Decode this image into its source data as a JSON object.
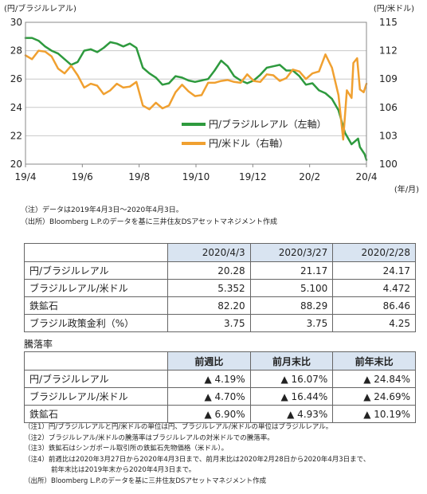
{
  "chart_data": {
    "type": "line",
    "left_axis_unit": "(円/ブラジルレアル)",
    "right_axis_unit": "(円/米ドル)",
    "x_unit": "(年/月)",
    "x_tick_labels": [
      "19/4",
      "19/6",
      "19/8",
      "19/10",
      "19/12",
      "20/2",
      "20/4"
    ],
    "x_range": [
      "2019-04-03",
      "2020-04-03"
    ],
    "y_left": {
      "min": 20,
      "max": 30,
      "ticks": [
        "20",
        "22",
        "24",
        "26",
        "28",
        "30"
      ]
    },
    "y_right": {
      "min": 100,
      "max": 115,
      "ticks": [
        "100",
        "103",
        "106",
        "109",
        "112",
        "115"
      ]
    },
    "legend_position": "center-right",
    "grid": "horizontal",
    "series": [
      {
        "name": "円/ブラジルレアル（左軸）",
        "axis": "left",
        "color": "#2e9a3e",
        "points": [
          [
            "2019-04-03",
            28.9
          ],
          [
            "2019-04-10",
            28.9
          ],
          [
            "2019-04-17",
            28.7
          ],
          [
            "2019-04-24",
            28.3
          ],
          [
            "2019-05-01",
            28.0
          ],
          [
            "2019-05-08",
            27.8
          ],
          [
            "2019-05-15",
            27.4
          ],
          [
            "2019-05-22",
            27.0
          ],
          [
            "2019-05-29",
            27.2
          ],
          [
            "2019-06-05",
            28.0
          ],
          [
            "2019-06-12",
            28.1
          ],
          [
            "2019-06-19",
            27.9
          ],
          [
            "2019-06-26",
            28.2
          ],
          [
            "2019-07-03",
            28.6
          ],
          [
            "2019-07-10",
            28.5
          ],
          [
            "2019-07-17",
            28.3
          ],
          [
            "2019-07-24",
            28.5
          ],
          [
            "2019-07-31",
            28.2
          ],
          [
            "2019-08-07",
            26.8
          ],
          [
            "2019-08-14",
            26.4
          ],
          [
            "2019-08-21",
            26.1
          ],
          [
            "2019-08-28",
            25.6
          ],
          [
            "2019-09-04",
            25.7
          ],
          [
            "2019-09-11",
            26.2
          ],
          [
            "2019-09-18",
            26.1
          ],
          [
            "2019-09-25",
            25.9
          ],
          [
            "2019-10-02",
            25.8
          ],
          [
            "2019-10-09",
            25.9
          ],
          [
            "2019-10-16",
            26.0
          ],
          [
            "2019-10-23",
            26.6
          ],
          [
            "2019-10-30",
            27.3
          ],
          [
            "2019-11-06",
            26.9
          ],
          [
            "2019-11-13",
            26.2
          ],
          [
            "2019-11-20",
            25.9
          ],
          [
            "2019-11-27",
            25.7
          ],
          [
            "2019-12-04",
            25.9
          ],
          [
            "2019-12-11",
            26.3
          ],
          [
            "2019-12-18",
            26.8
          ],
          [
            "2019-12-25",
            26.9
          ],
          [
            "2020-01-01",
            27.0
          ],
          [
            "2020-01-08",
            26.6
          ],
          [
            "2020-01-15",
            26.6
          ],
          [
            "2020-01-22",
            26.2
          ],
          [
            "2020-01-29",
            25.6
          ],
          [
            "2020-02-05",
            25.7
          ],
          [
            "2020-02-12",
            25.2
          ],
          [
            "2020-02-19",
            25.0
          ],
          [
            "2020-02-26",
            24.6
          ],
          [
            "2020-03-04",
            23.8
          ],
          [
            "2020-03-11",
            22.2
          ],
          [
            "2020-03-18",
            21.4
          ],
          [
            "2020-03-25",
            21.8
          ],
          [
            "2020-03-27",
            21.2
          ],
          [
            "2020-04-01",
            20.7
          ],
          [
            "2020-04-03",
            20.3
          ]
        ]
      },
      {
        "name": "円/米ドル（右軸）",
        "axis": "right",
        "color": "#f0a030",
        "points": [
          [
            "2019-04-03",
            111.5
          ],
          [
            "2019-04-10",
            111.1
          ],
          [
            "2019-04-17",
            112.0
          ],
          [
            "2019-04-24",
            111.9
          ],
          [
            "2019-05-01",
            111.4
          ],
          [
            "2019-05-08",
            110.1
          ],
          [
            "2019-05-15",
            109.6
          ],
          [
            "2019-05-22",
            110.4
          ],
          [
            "2019-05-29",
            109.4
          ],
          [
            "2019-06-05",
            108.1
          ],
          [
            "2019-06-12",
            108.5
          ],
          [
            "2019-06-19",
            108.3
          ],
          [
            "2019-06-26",
            107.4
          ],
          [
            "2019-07-03",
            107.8
          ],
          [
            "2019-07-10",
            108.5
          ],
          [
            "2019-07-17",
            108.1
          ],
          [
            "2019-07-24",
            108.2
          ],
          [
            "2019-07-31",
            108.7
          ],
          [
            "2019-08-07",
            106.2
          ],
          [
            "2019-08-14",
            105.8
          ],
          [
            "2019-08-21",
            106.5
          ],
          [
            "2019-08-28",
            105.9
          ],
          [
            "2019-09-04",
            106.2
          ],
          [
            "2019-09-11",
            107.6
          ],
          [
            "2019-09-18",
            108.4
          ],
          [
            "2019-09-25",
            107.7
          ],
          [
            "2019-10-02",
            107.2
          ],
          [
            "2019-10-09",
            107.3
          ],
          [
            "2019-10-16",
            108.6
          ],
          [
            "2019-10-23",
            108.6
          ],
          [
            "2019-10-30",
            108.8
          ],
          [
            "2019-11-06",
            108.9
          ],
          [
            "2019-11-13",
            108.7
          ],
          [
            "2019-11-20",
            108.6
          ],
          [
            "2019-11-27",
            109.5
          ],
          [
            "2019-12-04",
            108.8
          ],
          [
            "2019-12-11",
            108.7
          ],
          [
            "2019-12-18",
            109.5
          ],
          [
            "2019-12-25",
            109.4
          ],
          [
            "2020-01-01",
            108.8
          ],
          [
            "2020-01-08",
            109.1
          ],
          [
            "2020-01-15",
            110.0
          ],
          [
            "2020-01-22",
            109.8
          ],
          [
            "2020-01-29",
            109.0
          ],
          [
            "2020-02-05",
            109.6
          ],
          [
            "2020-02-12",
            109.8
          ],
          [
            "2020-02-19",
            111.6
          ],
          [
            "2020-02-26",
            110.2
          ],
          [
            "2020-03-04",
            107.3
          ],
          [
            "2020-03-09",
            102.6
          ],
          [
            "2020-03-13",
            107.8
          ],
          [
            "2020-03-18",
            107.0
          ],
          [
            "2020-03-20",
            110.7
          ],
          [
            "2020-03-24",
            111.2
          ],
          [
            "2020-03-27",
            107.9
          ],
          [
            "2020-03-31",
            107.6
          ],
          [
            "2020-04-03",
            108.5
          ]
        ]
      }
    ]
  },
  "note1": [
    "（注）データは2019年4月3日～2020年4月3日。",
    "（出所）Bloomberg L.P.のデータを基に三井住友DSアセットマネジメント作成"
  ],
  "table1": {
    "headers": [
      "",
      "2020/4/3",
      "2020/3/27",
      "2020/2/28"
    ],
    "rows": [
      {
        "label": "円/ブラジルレアル",
        "values": [
          "20.28",
          "21.17",
          "24.17"
        ]
      },
      {
        "label": "ブラジルレアル/米ドル",
        "values": [
          "5.352",
          "5.100",
          "4.472"
        ]
      },
      {
        "label": "鉄鉱石",
        "values": [
          "82.20",
          "88.29",
          "86.46"
        ]
      },
      {
        "label": "ブラジル政策金利（%）",
        "values": [
          "3.75",
          "3.75",
          "4.25"
        ]
      }
    ]
  },
  "table2": {
    "title": "騰落率",
    "headers": [
      "",
      "前週比",
      "前月末比",
      "前年末比"
    ],
    "rows": [
      {
        "label": "円/ブラジルレアル",
        "values": [
          "▲ 4.19%",
          "▲ 16.07%",
          "▲ 24.84%"
        ]
      },
      {
        "label": "ブラジルレアル/米ドル",
        "values": [
          "▲ 4.70%",
          "▲ 16.44%",
          "▲ 24.69%"
        ]
      },
      {
        "label": "鉄鉱石",
        "values": [
          "▲ 6.90%",
          "▲ 4.93%",
          "▲ 10.19%"
        ]
      }
    ]
  },
  "notes2": [
    "（注1）円/ブラジルレアルと円/米ドルの単位は円、ブラジルレアル/米ドルの単位はブラジルレアル。",
    "（注2）ブラジルレアル/米ドルの騰落率はブラジルレアルの対米ドルでの騰落率。",
    "（注3）鉄鉱石はシンガポール取引所の鉄鉱石先物価格（米ドル）。",
    "（注4）前週比は2020年3月27日から2020年4月3日まで、前月末比は2020年2月28日から2020年4月3日まで、",
    "前年末比は2019年末から2020年4月3日まで。",
    "（出所）Bloomberg L.P.のデータを基に三井住友DSアセットマネジメント作成"
  ]
}
